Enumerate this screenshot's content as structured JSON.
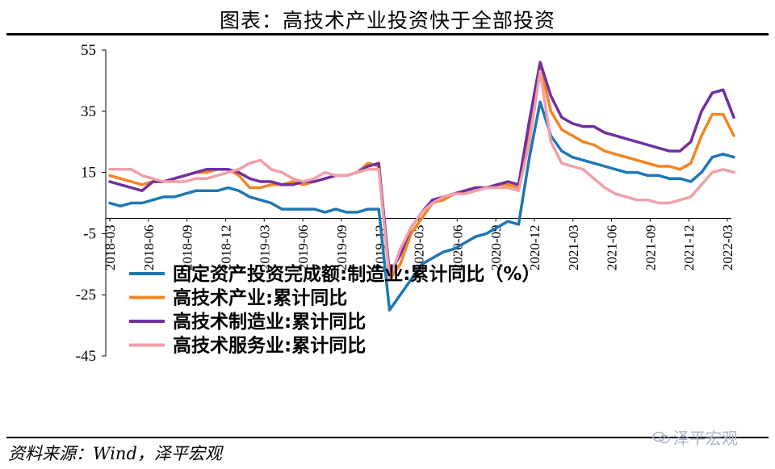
{
  "title": "图表：高技术产业投资快于全部投资",
  "source": "资料来源：Wind，泽平宏观",
  "watermark": "泽平宏观",
  "chart_data": {
    "type": "line",
    "ylim": [
      -45,
      55
    ],
    "yticks": [
      "55",
      "35",
      "15",
      "-5",
      "-25",
      "-45"
    ],
    "ytick_values": [
      55,
      35,
      15,
      -5,
      -25,
      -45
    ],
    "x_labels": [
      "2018-03",
      "2018-06",
      "2018-09",
      "2018-12",
      "2019-03",
      "2019-06",
      "2019-09",
      "2019-12",
      "2020-03",
      "2020-06",
      "2020-09",
      "2020-12",
      "2021-03",
      "2021-06",
      "2021-09",
      "2021-12",
      "2022-03"
    ],
    "legend_position": "center-left",
    "series": [
      {
        "name": "固定资产投资完成额:制造业:累计同比（%）",
        "color": "#1f77b4",
        "values": [
          5,
          4,
          5,
          5,
          6,
          7,
          7,
          8,
          9,
          9,
          9,
          10,
          9,
          7,
          6,
          5,
          3,
          3,
          3,
          3,
          2,
          3,
          2,
          2,
          3,
          3,
          -30,
          -25,
          -20,
          -15,
          -13,
          -11,
          -10,
          -8,
          -6,
          -5,
          -3,
          -1,
          -2,
          20,
          38,
          27,
          22,
          20,
          19,
          18,
          17,
          16,
          15,
          15,
          14,
          14,
          13,
          13,
          12,
          15,
          20,
          21,
          20
        ]
      },
      {
        "name": "高技术产业:累计同比",
        "color": "#f28522",
        "values": [
          14,
          13,
          12,
          11,
          12,
          12,
          13,
          14,
          15,
          15,
          16,
          16,
          14,
          10,
          10,
          11,
          11,
          12,
          11,
          12,
          13,
          14,
          14,
          15,
          18,
          17,
          -20,
          -15,
          -5,
          0,
          5,
          6,
          8,
          9,
          10,
          10,
          11,
          11,
          10,
          30,
          50,
          35,
          29,
          27,
          25,
          24,
          22,
          21,
          20,
          19,
          18,
          17,
          17,
          16,
          18,
          27,
          34,
          34,
          27
        ]
      },
      {
        "name": "高技术制造业:累计同比",
        "color": "#7030a0",
        "values": [
          12,
          11,
          10,
          9,
          12,
          12,
          13,
          14,
          15,
          16,
          16,
          16,
          15,
          13,
          12,
          12,
          11,
          11,
          12,
          12,
          13,
          14,
          14,
          15,
          17,
          18,
          -18,
          -12,
          -3,
          2,
          6,
          7,
          8,
          9,
          10,
          10,
          11,
          12,
          11,
          32,
          51,
          40,
          33,
          31,
          30,
          30,
          28,
          27,
          26,
          25,
          24,
          23,
          22,
          22,
          25,
          35,
          41,
          42,
          33
        ]
      },
      {
        "name": "高技术服务业:累计同比",
        "color": "#f0a0a8",
        "values": [
          16,
          16,
          16,
          14,
          13,
          12,
          12,
          12,
          13,
          13,
          14,
          15,
          16,
          18,
          19,
          16,
          15,
          13,
          12,
          13,
          15,
          14,
          14,
          15,
          16,
          16,
          -20,
          -10,
          -3,
          2,
          5,
          7,
          8,
          8,
          9,
          10,
          10,
          10,
          9,
          25,
          48,
          25,
          18,
          17,
          16,
          13,
          10,
          8,
          7,
          6,
          6,
          5,
          5,
          6,
          7,
          11,
          15,
          16,
          15
        ]
      }
    ]
  }
}
